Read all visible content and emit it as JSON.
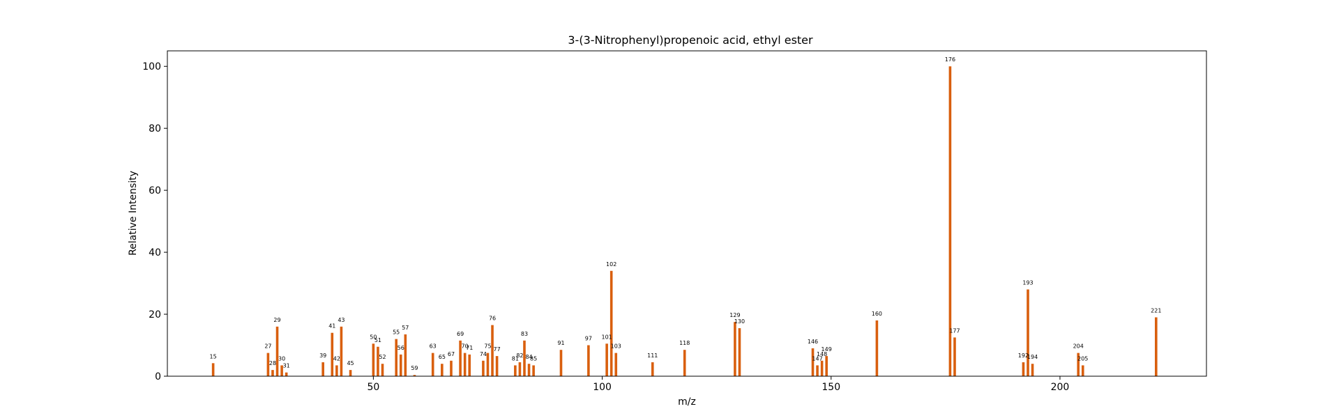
{
  "chart_data": {
    "type": "bar",
    "title": "3-(3-Nitrophenyl)propenoic acid, ethyl ester",
    "xlabel": "m/z",
    "ylabel": "Relative Intensity",
    "xlim": [
      5,
      232
    ],
    "ylim": [
      0,
      105
    ],
    "xticks": [
      50,
      100,
      150,
      200
    ],
    "yticks": [
      0,
      20,
      40,
      60,
      80,
      100
    ],
    "grid": false,
    "bar_color": "#d95f0e",
    "series": [
      {
        "x": [
          15,
          27,
          28,
          29,
          30,
          31,
          39,
          41,
          42,
          43,
          45,
          50,
          51,
          52,
          55,
          56,
          57,
          59,
          63,
          65,
          67,
          69,
          70,
          71,
          74,
          75,
          76,
          77,
          81,
          82,
          83,
          84,
          85,
          91,
          97,
          101,
          102,
          103,
          111,
          118,
          129,
          130,
          146,
          147,
          148,
          149,
          160,
          176,
          177,
          192,
          193,
          194,
          204,
          205,
          221
        ],
        "values": [
          4.2,
          7.5,
          2.0,
          16.0,
          3.5,
          1.2,
          4.5,
          14.0,
          3.5,
          16.0,
          2.0,
          10.5,
          9.5,
          4.0,
          12.0,
          7.0,
          13.5,
          0.4,
          7.5,
          4.0,
          5.0,
          11.5,
          7.5,
          7.0,
          5.0,
          7.5,
          16.5,
          6.5,
          3.5,
          4.5,
          11.5,
          4.0,
          3.5,
          8.5,
          10.0,
          10.5,
          34.0,
          7.5,
          4.5,
          8.5,
          17.5,
          15.5,
          9.0,
          3.5,
          5.0,
          6.5,
          18.0,
          100.0,
          12.5,
          4.5,
          28.0,
          4.0,
          7.5,
          3.5,
          19.0
        ]
      }
    ]
  }
}
